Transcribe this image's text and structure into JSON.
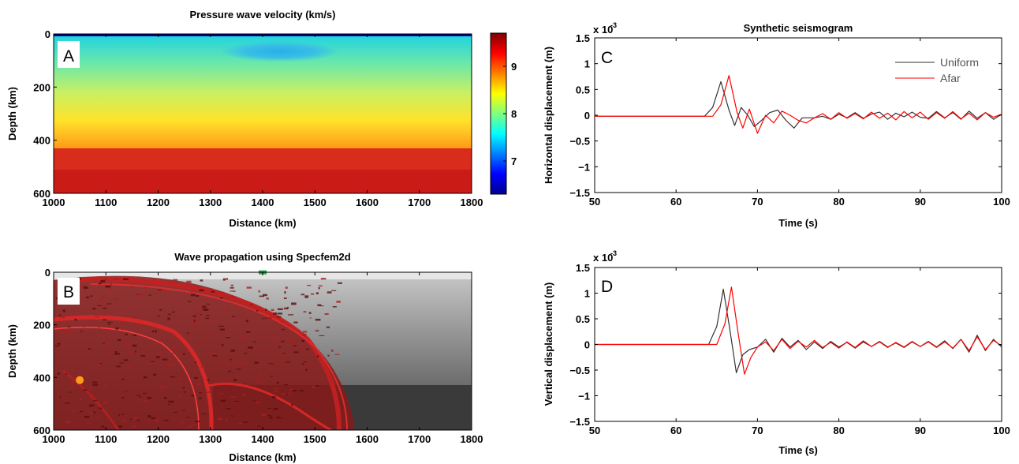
{
  "chart_data": [
    {
      "panel": "A",
      "type": "heatmap",
      "title": "Pressure wave velocity (km/s)",
      "xlabel": "Distance (km)",
      "ylabel": "Depth (km)",
      "xlim": [
        1000,
        1800
      ],
      "ylim": [
        600,
        0
      ],
      "xticks": [
        "1000",
        "1100",
        "1200",
        "1300",
        "1400",
        "1500",
        "1600",
        "1700",
        "1800"
      ],
      "yticks": [
        "0",
        "200",
        "400",
        "600"
      ],
      "colorbar": {
        "ticks": [
          "7",
          "8",
          "9"
        ],
        "range": [
          6.3,
          9.7
        ],
        "colormap": "jet"
      },
      "layers": [
        {
          "depth_top": 0,
          "depth_bottom": 8,
          "velocity": 6.3
        },
        {
          "depth_top": 8,
          "depth_bottom": 430,
          "velocity_top": 7.8,
          "velocity_bottom": 8.9
        },
        {
          "depth_top": 430,
          "depth_bottom": 600,
          "velocity": 9.6
        }
      ],
      "anomaly": {
        "x_center": 1400,
        "x_range": [
          1330,
          1540
        ],
        "depth_range": [
          40,
          100
        ],
        "velocity": 7.4
      }
    },
    {
      "panel": "B",
      "type": "heatmap",
      "title": "Wave propagation using Specfem2d",
      "xlabel": "Distance (km)",
      "ylabel": "Depth (km)",
      "xlim": [
        1000,
        1800
      ],
      "ylim": [
        600,
        0
      ],
      "xticks": [
        "1000",
        "1100",
        "1200",
        "1300",
        "1400",
        "1500",
        "1600",
        "1700",
        "1800"
      ],
      "yticks": [
        "0",
        "200",
        "400",
        "600"
      ],
      "source": {
        "x": 1050,
        "depth": 410
      },
      "receiver": {
        "x": 1400,
        "depth": 5
      }
    },
    {
      "panel": "C",
      "type": "line",
      "title": "Synthetic seismogram",
      "xlabel": "Time (s)",
      "ylabel": "Horizontal displacement (m)",
      "xlim": [
        50,
        100
      ],
      "ylim": [
        -1.5,
        1.5
      ],
      "y_multiplier": "x 10",
      "y_exponent": "-3",
      "xticks": [
        "50",
        "60",
        "70",
        "80",
        "90",
        "100"
      ],
      "yticks": [
        "1.5",
        "1",
        "0.5",
        "0",
        "−0.5",
        "−1",
        "−1.5"
      ],
      "legend": {
        "position": "top-right",
        "entries": [
          "Uniform",
          "Afar"
        ]
      },
      "series": [
        {
          "name": "Uniform",
          "color": "#333333",
          "x": [
            50,
            63.5,
            64.5,
            65.5,
            66.5,
            67.2,
            68.0,
            68.8,
            69.6,
            70.5,
            71.5,
            72.5,
            73.5,
            74.5,
            75.5,
            77,
            78,
            79,
            80,
            81,
            82,
            83,
            84,
            85,
            86,
            87,
            88,
            89,
            90,
            91,
            92,
            93,
            94,
            95,
            96,
            97,
            98,
            99,
            100
          ],
          "y": [
            -0.02,
            -0.02,
            0.15,
            0.65,
            0.1,
            -0.2,
            0.15,
            0.0,
            -0.22,
            -0.1,
            0.05,
            0.1,
            -0.1,
            -0.25,
            -0.05,
            -0.05,
            -0.02,
            -0.08,
            0.02,
            -0.05,
            0.05,
            -0.06,
            0.02,
            0.06,
            -0.08,
            0.04,
            -0.03,
            0.06,
            -0.04,
            -0.06,
            0.07,
            -0.05,
            0.05,
            -0.08,
            0.08,
            -0.06,
            0.05,
            -0.08,
            0.02
          ]
        },
        {
          "name": "Afar",
          "color": "#ff0000",
          "x": [
            50,
            64.5,
            65.5,
            66.5,
            67.5,
            68.2,
            69.0,
            70.0,
            71.0,
            72.0,
            73.0,
            74.0,
            75.0,
            76.0,
            77,
            78,
            79,
            80,
            81,
            82,
            83,
            84,
            85,
            86,
            87,
            88,
            89,
            90,
            91,
            92,
            93,
            94,
            95,
            96,
            97,
            98,
            99,
            100
          ],
          "y": [
            -0.02,
            -0.02,
            0.2,
            0.77,
            0.05,
            -0.25,
            0.12,
            -0.35,
            0.0,
            -0.15,
            0.08,
            0.0,
            -0.1,
            -0.15,
            -0.05,
            0.03,
            -0.08,
            0.05,
            -0.06,
            0.03,
            -0.07,
            0.06,
            -0.06,
            0.04,
            -0.09,
            0.07,
            -0.05,
            0.06,
            -0.08,
            0.05,
            -0.06,
            0.07,
            -0.07,
            0.04,
            -0.09,
            0.05,
            -0.04,
            0.02
          ]
        }
      ]
    },
    {
      "panel": "D",
      "type": "line",
      "title": "",
      "xlabel": "Time (s)",
      "ylabel": "Vertical displacement (m)",
      "xlim": [
        50,
        100
      ],
      "ylim": [
        -1.5,
        1.5
      ],
      "y_multiplier": "x 10",
      "y_exponent": "-3",
      "xticks": [
        "50",
        "60",
        "70",
        "80",
        "90",
        "100"
      ],
      "yticks": [
        "1.5",
        "1",
        "0.5",
        "0",
        "−0.5",
        "−1",
        "−1.5"
      ],
      "series": [
        {
          "name": "Uniform",
          "color": "#333333",
          "x": [
            50,
            64,
            65,
            65.8,
            66.6,
            67.4,
            68.2,
            69.0,
            70,
            71,
            72,
            73,
            74,
            75,
            76,
            77,
            78,
            79,
            80,
            81,
            82,
            83,
            84,
            85,
            86,
            87,
            88,
            89,
            90,
            91,
            92,
            93,
            94,
            95,
            96,
            97,
            98,
            99,
            100
          ],
          "y": [
            0,
            0,
            0.35,
            1.08,
            0.3,
            -0.55,
            -0.2,
            -0.1,
            -0.05,
            0.1,
            -0.15,
            0.12,
            -0.05,
            0.08,
            -0.1,
            0.05,
            -0.08,
            0.06,
            -0.05,
            0.04,
            -0.07,
            0.05,
            -0.04,
            0.06,
            -0.05,
            0.03,
            -0.06,
            0.05,
            -0.04,
            0.06,
            -0.05,
            0.07,
            -0.08,
            0.1,
            -0.15,
            0.18,
            -0.12,
            0.1,
            -0.05
          ]
        },
        {
          "name": "Afar",
          "color": "#ff0000",
          "x": [
            50,
            65,
            66,
            66.8,
            67.6,
            68.4,
            69.2,
            70,
            71,
            72,
            73,
            74,
            75,
            76,
            77,
            78,
            79,
            80,
            81,
            82,
            83,
            84,
            85,
            86,
            87,
            88,
            89,
            90,
            91,
            92,
            93,
            94,
            95,
            96,
            97,
            98,
            99,
            100
          ],
          "y": [
            0,
            0,
            0.4,
            1.12,
            0.25,
            -0.58,
            -0.25,
            -0.05,
            0.05,
            -0.12,
            0.1,
            -0.08,
            0.06,
            -0.05,
            0.08,
            -0.06,
            0.04,
            -0.07,
            0.05,
            -0.06,
            0.07,
            -0.04,
            0.05,
            -0.06,
            0.04,
            -0.05,
            0.06,
            -0.04,
            0.05,
            -0.06,
            0.05,
            -0.07,
            0.1,
            -0.12,
            0.15,
            -0.1,
            0.08,
            -0.03
          ]
        }
      ]
    }
  ]
}
